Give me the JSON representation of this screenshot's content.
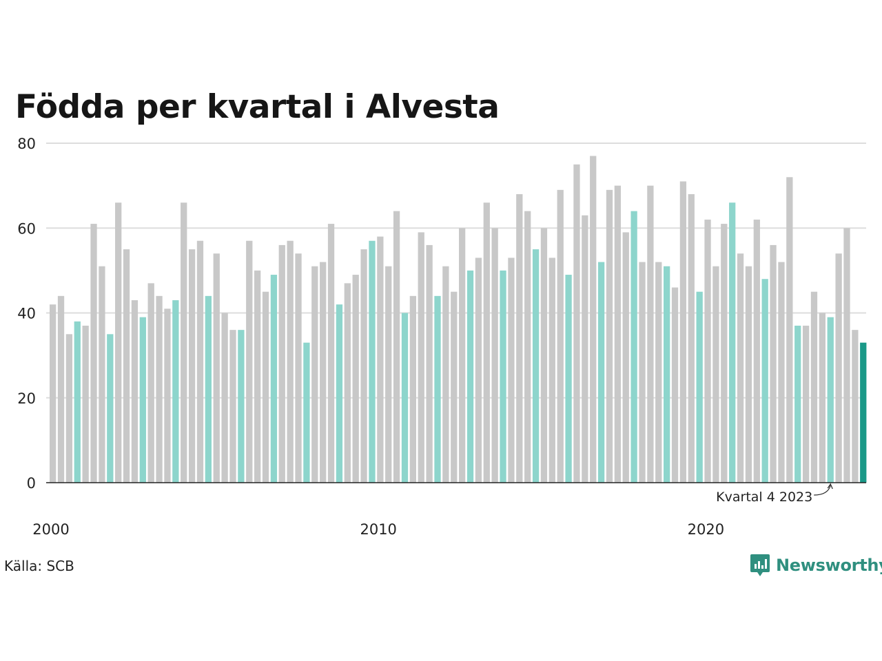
{
  "title": "Födda per kvartal i Alvesta",
  "source": "Källa: SCB",
  "brand": "Newsworthy",
  "colors": {
    "other_quarter": "#c8c8c8",
    "q4_highlight": "#8dd5cc",
    "latest": "#1a9988",
    "grid": "#dddddd",
    "baseline": "#222222",
    "brand": "#2f8f7f"
  },
  "chart_data": {
    "type": "bar",
    "title": "Födda per kvartal i Alvesta",
    "xlabel": "",
    "ylabel": "",
    "ylim": [
      0,
      80
    ],
    "yticks": [
      "0",
      "20",
      "40",
      "60",
      "80"
    ],
    "xticks": [
      "2000",
      "2010",
      "2020"
    ],
    "grid": true,
    "start_year": 2000,
    "highlight_rule": "fourth quarter of each year highlighted",
    "annotation": "Kvartal 4 2023",
    "annotation_target": "2023 Q4",
    "categories": [
      "2000 Q1",
      "2000 Q2",
      "2000 Q3",
      "2000 Q4",
      "2001 Q1",
      "2001 Q2",
      "2001 Q3",
      "2001 Q4",
      "2002 Q1",
      "2002 Q2",
      "2002 Q3",
      "2002 Q4",
      "2003 Q1",
      "2003 Q2",
      "2003 Q3",
      "2003 Q4",
      "2004 Q1",
      "2004 Q2",
      "2004 Q3",
      "2004 Q4",
      "2005 Q1",
      "2005 Q2",
      "2005 Q3",
      "2005 Q4",
      "2006 Q1",
      "2006 Q2",
      "2006 Q3",
      "2006 Q4",
      "2007 Q1",
      "2007 Q2",
      "2007 Q3",
      "2007 Q4",
      "2008 Q1",
      "2008 Q2",
      "2008 Q3",
      "2008 Q4",
      "2009 Q1",
      "2009 Q2",
      "2009 Q3",
      "2009 Q4",
      "2010 Q1",
      "2010 Q2",
      "2010 Q3",
      "2010 Q4",
      "2011 Q1",
      "2011 Q2",
      "2011 Q3",
      "2011 Q4",
      "2012 Q1",
      "2012 Q2",
      "2012 Q3",
      "2012 Q4",
      "2013 Q1",
      "2013 Q2",
      "2013 Q3",
      "2013 Q4",
      "2014 Q1",
      "2014 Q2",
      "2014 Q3",
      "2014 Q4",
      "2015 Q1",
      "2015 Q2",
      "2015 Q3",
      "2015 Q4",
      "2016 Q1",
      "2016 Q2",
      "2016 Q3",
      "2016 Q4",
      "2017 Q1",
      "2017 Q2",
      "2017 Q3",
      "2017 Q4",
      "2018 Q1",
      "2018 Q2",
      "2018 Q3",
      "2018 Q4",
      "2019 Q1",
      "2019 Q2",
      "2019 Q3",
      "2019 Q4",
      "2020 Q1",
      "2020 Q2",
      "2020 Q3",
      "2020 Q4",
      "2021 Q1",
      "2021 Q2",
      "2021 Q3",
      "2021 Q4",
      "2022 Q1",
      "2022 Q2",
      "2022 Q3",
      "2022 Q4",
      "2023 Q1",
      "2023 Q2",
      "2023 Q3",
      "2023 Q4",
      "2024 Q1",
      "2024 Q2",
      "2024 Q3",
      "2024 Q4"
    ],
    "values": [
      42,
      44,
      35,
      38,
      37,
      61,
      51,
      35,
      66,
      55,
      43,
      39,
      47,
      44,
      41,
      43,
      66,
      55,
      57,
      44,
      54,
      40,
      36,
      36,
      57,
      50,
      45,
      49,
      56,
      57,
      54,
      33,
      51,
      52,
      61,
      42,
      47,
      49,
      55,
      57,
      58,
      51,
      64,
      40,
      44,
      59,
      56,
      44,
      51,
      45,
      60,
      50,
      53,
      66,
      60,
      50,
      53,
      68,
      64,
      55,
      60,
      53,
      69,
      49,
      75,
      63,
      77,
      52,
      69,
      70,
      59,
      64,
      52,
      70,
      52,
      51,
      46,
      71,
      68,
      45,
      62,
      51,
      61,
      66,
      54,
      51,
      62,
      48,
      56,
      52,
      72,
      37,
      37,
      45,
      40,
      39,
      54,
      60,
      36,
      33
    ]
  }
}
